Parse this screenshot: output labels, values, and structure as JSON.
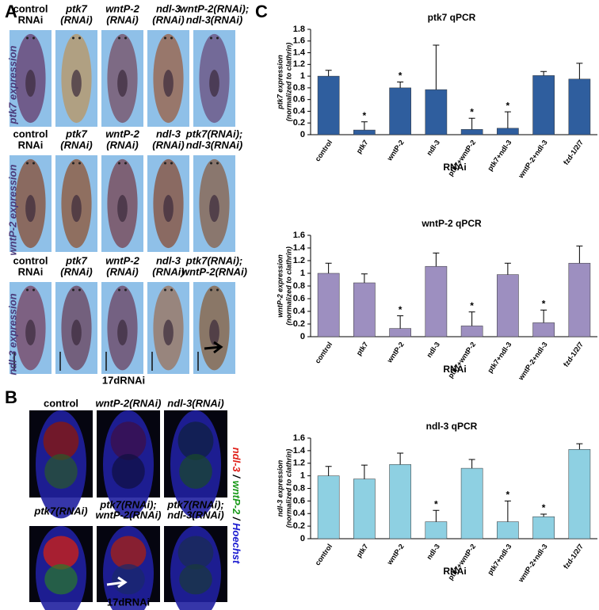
{
  "panel_a": {
    "letter": "A",
    "rows": [
      {
        "columns": [
          [
            "control",
            "RNAi"
          ],
          [
            "ptk7",
            "(RNAi)"
          ],
          [
            "wntP-2",
            "(RNAi)"
          ],
          [
            "ndl-3",
            "(RNAi)"
          ],
          [
            "wntP-2(RNAi);",
            "ndl-3(RNAi)"
          ]
        ],
        "side_label": "ptk7 expression"
      },
      {
        "columns": [
          [
            "control",
            "RNAi"
          ],
          [
            "ptk7",
            "(RNAi)"
          ],
          [
            "wntP-2",
            "(RNAi)"
          ],
          [
            "ndl-3",
            "(RNAi)"
          ],
          [
            "ptk7(RNAi);",
            "ndl-3(RNAi)"
          ]
        ],
        "side_label": "wntP-2 expression"
      },
      {
        "columns": [
          [
            "control",
            "RNAi"
          ],
          [
            "ptk7",
            "(RNAi)"
          ],
          [
            "wntP-2",
            "(RNAi)"
          ],
          [
            "ndl-3",
            "(RNAi)"
          ],
          [
            "ptk7(RNAi);",
            "wntP-2(RNAi)"
          ]
        ],
        "side_label": "ndl-3 expression"
      }
    ],
    "footer": "17dRNAi"
  },
  "panel_b": {
    "letter": "B",
    "rows": [
      {
        "columns": [
          [
            "control"
          ],
          [
            "wntP-2(RNAi)"
          ],
          [
            "ndl-3(RNAi)"
          ]
        ]
      },
      {
        "columns": [
          [
            "ptk7(RNAi)"
          ],
          [
            "ptk7(RNAi);",
            "wntP-2(RNAi)"
          ],
          [
            "ptk7(RNAi);",
            "ndl-3(RNAi)"
          ]
        ]
      }
    ],
    "side_label": [
      {
        "text": "ndl-3",
        "color": "#e0201a"
      },
      {
        "text": " / ",
        "color": "#000000"
      },
      {
        "text": "wntP-2",
        "color": "#1a9a1a"
      },
      {
        "text": " / ",
        "color": "#000000"
      },
      {
        "text": "Hoechst",
        "color": "#1a1ad0"
      }
    ],
    "footer": "17dRNAi"
  },
  "panel_c": {
    "letter": "C"
  },
  "chart_data": [
    {
      "type": "bar",
      "title": "ptk7 qPCR",
      "y_label": [
        "ptk7 expression",
        "(normalized to clathrin)"
      ],
      "x_label": "RNAi",
      "categories": [
        "control",
        "ptk7",
        "wntP-2",
        "ndl-3",
        "ptk7+wntP-2",
        "ptk7+ndl-3",
        "wntP-2+ndl-3",
        "fzd-1/2/7"
      ],
      "values": [
        1.0,
        0.08,
        0.8,
        0.77,
        0.09,
        0.11,
        1.01,
        0.95
      ],
      "errors": [
        0.1,
        0.14,
        0.1,
        0.76,
        0.19,
        0.28,
        0.07,
        0.27
      ],
      "color": "#2f5e9e",
      "ylim": [
        0,
        1.8
      ],
      "yticks": [
        0,
        0.2,
        0.4,
        0.6,
        0.8,
        1,
        1.2,
        1.4,
        1.6,
        1.8
      ],
      "markers": [
        {
          "index": 1,
          "text": "*"
        },
        {
          "index": 2,
          "text": "*"
        },
        {
          "index": 4,
          "text": "*"
        },
        {
          "index": 5,
          "text": "*"
        }
      ]
    },
    {
      "type": "bar",
      "title": "wntP-2 qPCR",
      "y_label": [
        "wntP-2 expression",
        "(normalized to clathrin)"
      ],
      "x_label": "RNAi",
      "categories": [
        "control",
        "ptk7",
        "wntP-2",
        "ndl-3",
        "ptk7+wntP-2",
        "ptk7+ndl-3",
        "wntP-2+ndl-3",
        "fzd-1/2/7"
      ],
      "values": [
        1.0,
        0.85,
        0.13,
        1.11,
        0.17,
        0.98,
        0.22,
        1.16
      ],
      "errors": [
        0.16,
        0.14,
        0.2,
        0.21,
        0.22,
        0.18,
        0.2,
        0.27
      ],
      "color": "#9d8fc0",
      "ylim": [
        0,
        1.6
      ],
      "yticks": [
        0,
        0.2,
        0.4,
        0.6,
        0.8,
        1,
        1.2,
        1.4,
        1.6
      ],
      "markers": [
        {
          "index": 2,
          "text": "*"
        },
        {
          "index": 4,
          "text": "*"
        },
        {
          "index": 6,
          "text": "*"
        }
      ]
    },
    {
      "type": "bar",
      "title": "ndl-3 qPCR",
      "y_label": [
        "ndl-3 expression",
        "(normalized to clathrin)"
      ],
      "x_label": "RNAi",
      "categories": [
        "control",
        "ptk7",
        "wntP-2",
        "ndl-3",
        "ptk7+wntP-2",
        "ptk7+ndl-3",
        "wntP-2+ndl-3",
        "fzd-1/2/7"
      ],
      "values": [
        1.0,
        0.95,
        1.18,
        0.27,
        1.12,
        0.27,
        0.35,
        1.42
      ],
      "errors": [
        0.15,
        0.22,
        0.18,
        0.18,
        0.14,
        0.33,
        0.04,
        0.09
      ],
      "color": "#8ed0e2",
      "ylim": [
        0,
        1.6
      ],
      "yticks": [
        0,
        0.2,
        0.4,
        0.6,
        0.8,
        1,
        1.2,
        1.4,
        1.6
      ],
      "markers": [
        {
          "index": 3,
          "text": "*"
        },
        {
          "index": 5,
          "text": "*"
        },
        {
          "index": 6,
          "text": "*"
        }
      ]
    }
  ]
}
